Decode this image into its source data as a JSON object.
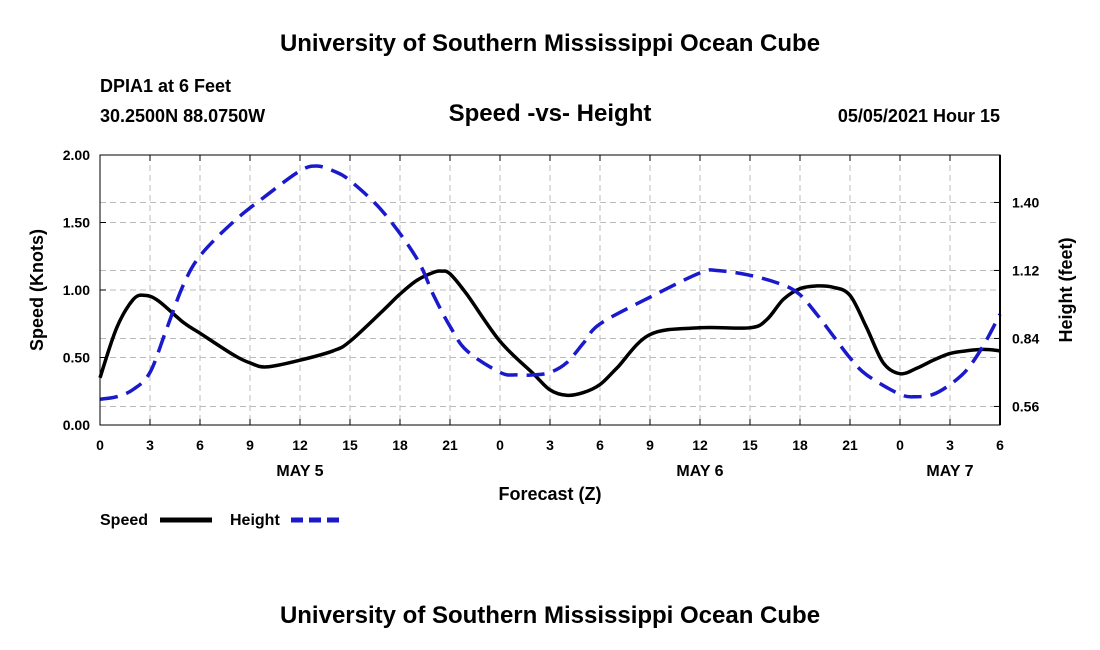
{
  "header": {
    "banner_top": "University of Southern Mississippi Ocean Cube",
    "banner_bottom": "University of Southern Mississippi Ocean Cube",
    "station": "DPIA1 at 6 Feet",
    "coords": "30.2500N  88.0750W",
    "timestamp": "05/05/2021 Hour 15"
  },
  "legend": {
    "speed_label": "Speed",
    "height_label": "Height"
  },
  "colors": {
    "speed": "#000000",
    "height": "#1a1acc",
    "grid": "#bbbbbb"
  },
  "chart_data": {
    "type": "line",
    "title": "Speed -vs- Height",
    "xlabel": "Forecast (Z)",
    "ylabel": "Speed (Knots)",
    "y2label": "Height (feet)",
    "xlim": [
      0,
      54
    ],
    "ylim": [
      0,
      2.0
    ],
    "y2lim": [
      0.4836,
      1.5954
    ],
    "x_ticks": [
      0,
      3,
      6,
      9,
      12,
      15,
      18,
      21,
      24,
      27,
      30,
      33,
      36,
      39,
      42,
      45,
      48,
      51,
      54
    ],
    "x_tick_labels": [
      "0",
      "3",
      "6",
      "9",
      "12",
      "15",
      "18",
      "21",
      "0",
      "3",
      "6",
      "9",
      "12",
      "15",
      "18",
      "21",
      "0",
      "3",
      "6"
    ],
    "y_ticks": [
      0.0,
      0.5,
      1.0,
      1.5,
      2.0
    ],
    "y_tick_labels": [
      "0.00",
      "0.50",
      "1.00",
      "1.50",
      "2.00"
    ],
    "y2_ticks": [
      0.56,
      0.84,
      1.12,
      1.4
    ],
    "y2_tick_labels": [
      "0.56",
      "0.84",
      "1.12",
      "1.40"
    ],
    "day_labels": [
      {
        "x": 12,
        "label": "MAY 5"
      },
      {
        "x": 36,
        "label": "MAY 6"
      },
      {
        "x": 51,
        "label": "MAY 7"
      }
    ],
    "grid": true,
    "legend_position": "bottom-left",
    "series": [
      {
        "name": "Speed",
        "axis": "left",
        "style": "solid",
        "x": [
          0,
          1,
          2,
          2.7,
          3.5,
          5,
          6,
          8,
          9,
          10,
          12,
          14,
          15,
          17,
          18,
          19,
          20,
          20.5,
          21,
          22,
          24,
          26,
          27,
          28,
          29,
          30,
          31,
          33,
          36,
          39,
          40,
          41,
          42,
          43,
          44,
          45,
          46,
          47,
          48,
          49,
          50,
          51,
          52,
          53,
          54
        ],
        "values": [
          0.35,
          0.72,
          0.93,
          0.96,
          0.92,
          0.76,
          0.68,
          0.52,
          0.46,
          0.43,
          0.48,
          0.55,
          0.62,
          0.85,
          0.97,
          1.07,
          1.13,
          1.14,
          1.12,
          0.97,
          0.62,
          0.38,
          0.26,
          0.22,
          0.24,
          0.3,
          0.42,
          0.67,
          0.72,
          0.72,
          0.78,
          0.93,
          1.01,
          1.03,
          1.02,
          0.96,
          0.72,
          0.46,
          0.38,
          0.42,
          0.48,
          0.53,
          0.55,
          0.56,
          0.55
        ]
      },
      {
        "name": "Height",
        "axis": "right",
        "style": "dashed",
        "x": [
          0,
          1,
          2,
          3,
          4,
          5,
          6,
          8,
          10,
          12,
          13,
          14,
          15,
          17,
          19,
          20,
          21,
          22,
          24,
          25,
          26,
          27,
          28,
          29,
          30,
          33,
          36,
          37,
          39,
          41,
          42,
          43,
          44,
          45,
          46,
          48,
          49,
          50,
          51,
          52,
          53,
          54
        ],
        "values": [
          0.59,
          0.6,
          0.63,
          0.7,
          0.88,
          1.06,
          1.18,
          1.32,
          1.43,
          1.53,
          1.55,
          1.53,
          1.49,
          1.36,
          1.17,
          1.02,
          0.89,
          0.79,
          0.7,
          0.69,
          0.69,
          0.7,
          0.74,
          0.82,
          0.9,
          1.01,
          1.11,
          1.12,
          1.1,
          1.06,
          1.02,
          0.94,
          0.85,
          0.76,
          0.69,
          0.61,
          0.6,
          0.61,
          0.65,
          0.71,
          0.81,
          0.94
        ]
      }
    ]
  }
}
